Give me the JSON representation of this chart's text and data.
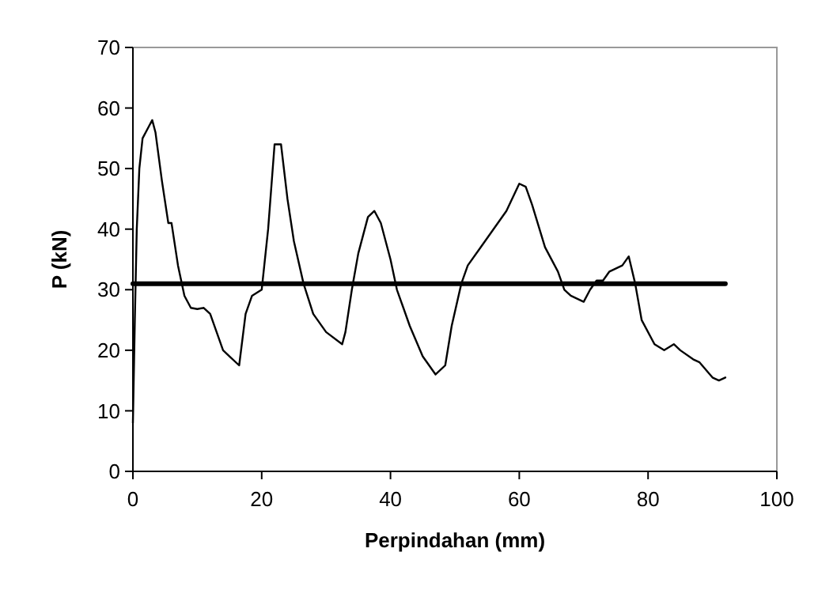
{
  "chart_data": {
    "type": "line",
    "xlabel": "Perpindahan (mm)",
    "ylabel": "P (kN)",
    "xlim": [
      0,
      100
    ],
    "xticks": [
      0,
      20,
      40,
      60,
      80,
      100
    ],
    "ylim": [
      0,
      70
    ],
    "yticks": [
      0,
      10,
      20,
      30,
      40,
      50,
      60,
      70
    ],
    "grid": false,
    "marker": "none",
    "line_style": "solid",
    "series": [
      {
        "color": "#000000",
        "x": [
          0,
          0.3,
          0.6,
          1,
          1.5,
          2.5,
          3,
          3.5,
          4.5,
          5.5,
          6,
          7,
          8,
          9,
          10,
          11,
          12,
          13,
          14,
          15,
          16.5,
          17.5,
          18.5,
          20,
          21,
          22,
          23,
          24,
          25,
          26.5,
          28,
          30,
          32.5,
          33,
          34,
          35,
          36.5,
          37.5,
          38.5,
          40,
          41,
          43,
          45,
          47,
          48.5,
          49.5,
          51,
          52,
          54,
          56,
          58,
          60,
          61,
          62,
          64,
          66,
          67,
          68,
          70,
          71,
          72,
          73,
          74,
          76,
          77,
          78,
          79,
          81,
          82.5,
          84,
          85,
          87,
          88,
          90,
          91,
          92
        ],
        "values": [
          8,
          25,
          40,
          50,
          55,
          57,
          58,
          56,
          48,
          41,
          41,
          34,
          29,
          27,
          26.8,
          27,
          26,
          23,
          20,
          19,
          17.5,
          26,
          29,
          30,
          40,
          54,
          54,
          45,
          38,
          31,
          26,
          23,
          21,
          23,
          30,
          36,
          42,
          43,
          41,
          35,
          30,
          24,
          19,
          16,
          17.5,
          24,
          31,
          34,
          37,
          40,
          43,
          47.5,
          47,
          44,
          37,
          33,
          30,
          29,
          28,
          30,
          31.5,
          31.5,
          33,
          34,
          35.5,
          31,
          25,
          21,
          20,
          21,
          20,
          18.5,
          18,
          15.5,
          15,
          15.5
        ]
      },
      {
        "color": "#000000",
        "x": [
          0,
          92
        ],
        "values": [
          31,
          31
        ]
      }
    ]
  }
}
